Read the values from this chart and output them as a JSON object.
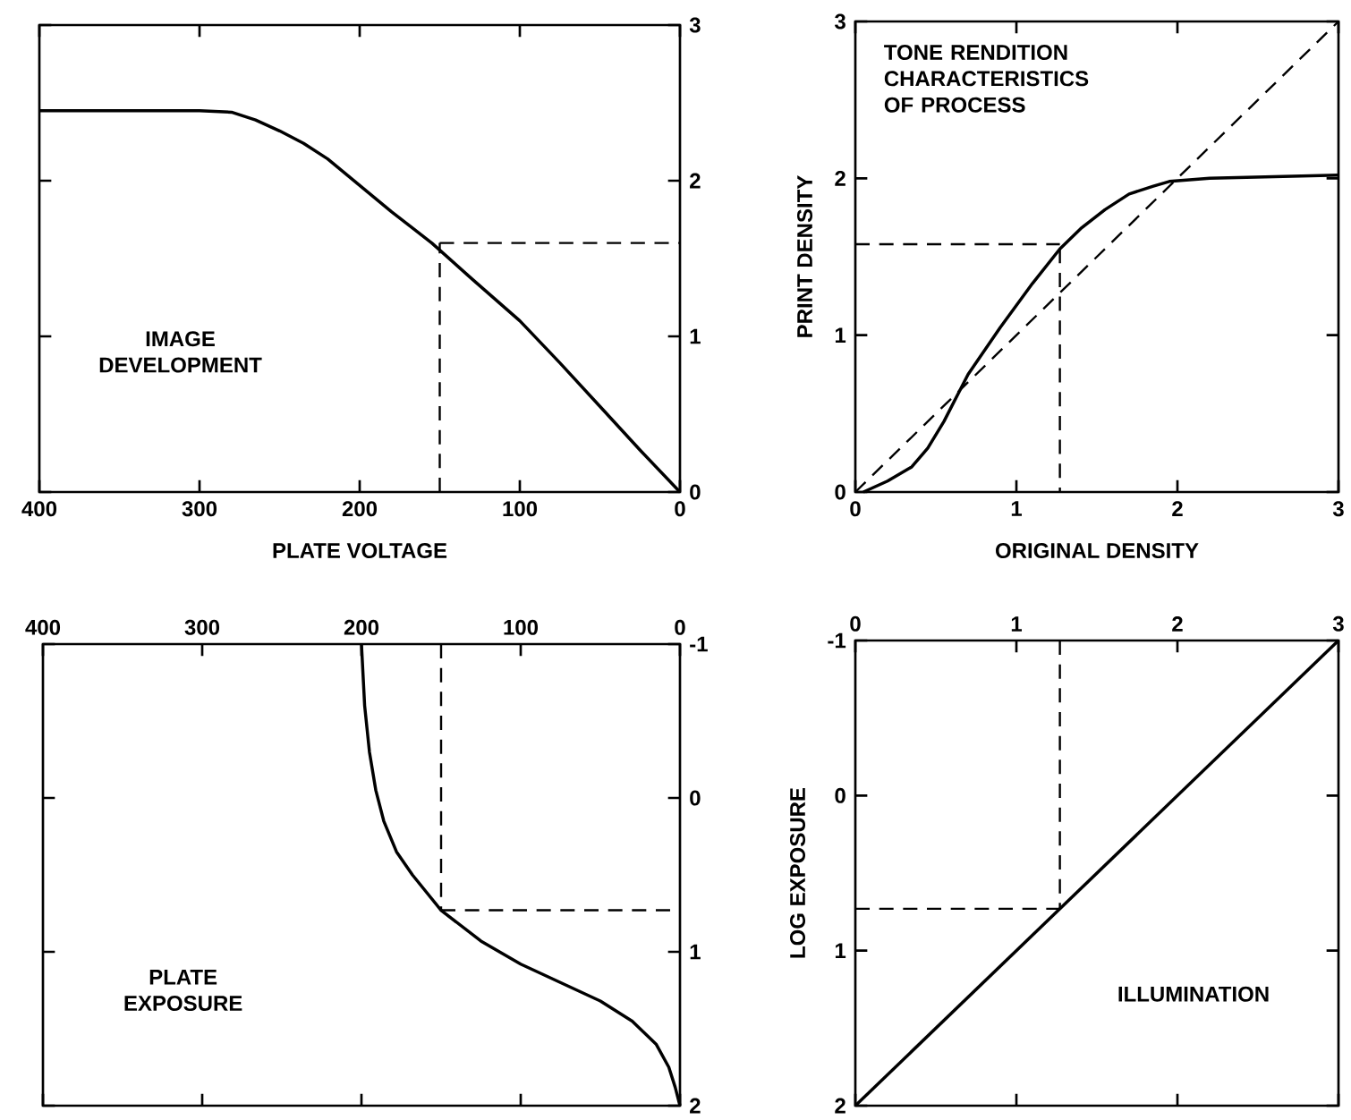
{
  "chart_data": [
    {
      "type": "line",
      "xlabel": "PLATE VOLTAGE",
      "xlim": [
        400,
        0
      ],
      "ylim": [
        0,
        3
      ],
      "xticks": [
        400,
        300,
        200,
        100,
        0
      ],
      "yticks": [
        0,
        1,
        2,
        3
      ],
      "annotations": [
        "IMAGE DEVELOPMENT"
      ],
      "series": [
        {
          "color": "#000000",
          "line_style": "solid",
          "x": [
            400,
            300,
            280,
            265,
            250,
            235,
            220,
            200,
            180,
            155,
            130,
            100,
            75,
            50,
            25,
            0
          ],
          "values": [
            2.45,
            2.45,
            2.44,
            2.39,
            2.32,
            2.24,
            2.14,
            1.97,
            1.8,
            1.6,
            1.37,
            1.1,
            0.83,
            0.55,
            0.27,
            0
          ]
        },
        {
          "color": "#000000",
          "line_style": "dashed",
          "x": [
            150,
            150
          ],
          "values": [
            0,
            1.6
          ]
        },
        {
          "color": "#000000",
          "line_style": "dashed",
          "x": [
            150,
            0
          ],
          "values": [
            1.6,
            1.6
          ]
        }
      ]
    },
    {
      "type": "line",
      "xlabel": "ORIGINAL DENSITY",
      "ylabel": "PRINT DENSITY",
      "xlim": [
        0,
        3
      ],
      "ylim": [
        0,
        3
      ],
      "xticks": [
        0,
        1,
        2,
        3
      ],
      "yticks": [
        0,
        1,
        2,
        3
      ],
      "annotations": [
        "TONE RENDITION CHARACTERISTICS OF PROCESS"
      ],
      "series": [
        {
          "color": "#000000",
          "line_style": "solid",
          "x": [
            0.05,
            0.2,
            0.35,
            0.45,
            0.55,
            0.7,
            0.9,
            1.1,
            1.27,
            1.4,
            1.55,
            1.7,
            1.85,
            1.95,
            2.2,
            2.6,
            3
          ],
          "values": [
            0,
            0.07,
            0.16,
            0.28,
            0.45,
            0.75,
            1.05,
            1.33,
            1.55,
            1.68,
            1.8,
            1.9,
            1.95,
            1.98,
            2.0,
            2.01,
            2.02
          ]
        },
        {
          "color": "#000000",
          "line_style": "dashed",
          "x": [
            0,
            3
          ],
          "values": [
            0,
            3
          ]
        },
        {
          "color": "#000000",
          "line_style": "dashed",
          "x": [
            0,
            1.27
          ],
          "values": [
            1.58,
            1.58
          ]
        },
        {
          "color": "#000000",
          "line_style": "dashed",
          "x": [
            1.27,
            1.27
          ],
          "values": [
            1.55,
            0
          ]
        }
      ]
    },
    {
      "type": "line",
      "xlim": [
        400,
        0
      ],
      "ylim": [
        2,
        -1
      ],
      "xticks": [
        400,
        300,
        200,
        100,
        0
      ],
      "yticks": [
        -1,
        0,
        1,
        2
      ],
      "annotations": [
        "PLATE EXPOSURE"
      ],
      "series": [
        {
          "color": "#000000",
          "line_style": "solid",
          "x": [
            200,
            198,
            195,
            191,
            186,
            178,
            168,
            150,
            125,
            100,
            75,
            50,
            30,
            15,
            7,
            3,
            0
          ],
          "values": [
            -1,
            -0.6,
            -0.3,
            -0.05,
            0.15,
            0.35,
            0.5,
            0.73,
            0.93,
            1.08,
            1.2,
            1.32,
            1.45,
            1.6,
            1.75,
            1.88,
            2
          ]
        },
        {
          "color": "#000000",
          "line_style": "dashed",
          "x": [
            150,
            150
          ],
          "values": [
            -1,
            0.73
          ]
        },
        {
          "color": "#000000",
          "line_style": "dashed",
          "x": [
            150,
            0
          ],
          "values": [
            0.73,
            0.73
          ]
        }
      ]
    },
    {
      "type": "line",
      "ylabel": "LOG EXPOSURE",
      "xlim": [
        0,
        3
      ],
      "ylim": [
        2,
        -1
      ],
      "xticks": [
        0,
        1,
        2,
        3
      ],
      "yticks": [
        -1,
        0,
        1,
        2
      ],
      "annotations": [
        "ILLUMINATION"
      ],
      "series": [
        {
          "color": "#000000",
          "line_style": "solid",
          "x": [
            0,
            3
          ],
          "values": [
            2,
            -1
          ]
        },
        {
          "color": "#000000",
          "line_style": "dashed",
          "x": [
            1.27,
            1.27
          ],
          "values": [
            -1,
            0.73
          ]
        },
        {
          "color": "#000000",
          "line_style": "dashed",
          "x": [
            0,
            1.27
          ],
          "values": [
            0.73,
            0.73
          ]
        }
      ]
    }
  ]
}
